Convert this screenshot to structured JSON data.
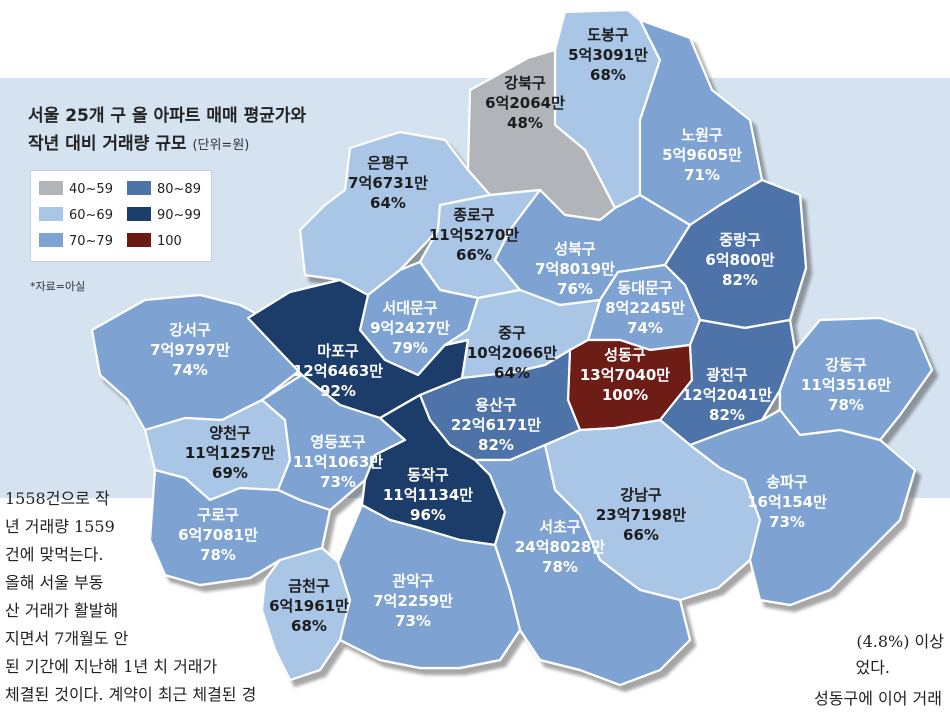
{
  "title": {
    "line1": "서울 25개 구 올 아파트 매매 평균가와",
    "line2": "작년 대비 거래량 규모",
    "unit": "(단위=원)"
  },
  "legend": [
    {
      "label": "40~59",
      "color": "#b1b5b9"
    },
    {
      "label": "80~89",
      "color": "#4d73a8"
    },
    {
      "label": "60~69",
      "color": "#a9c6e6"
    },
    {
      "label": "90~99",
      "color": "#1c3e6a"
    },
    {
      "label": "70~79",
      "color": "#7ea3d2"
    },
    {
      "label": "100",
      "color": "#6e1a14"
    }
  ],
  "source": "*자료=아실",
  "districts": [
    {
      "id": "dobong",
      "name": "도봉구",
      "price": "5억3091만",
      "pct": "68%",
      "range": "60~69"
    },
    {
      "id": "gangbuk",
      "name": "강북구",
      "price": "6억2064만",
      "pct": "48%",
      "range": "40~59"
    },
    {
      "id": "nowon",
      "name": "노원구",
      "price": "5억9605만",
      "pct": "71%",
      "range": "70~79"
    },
    {
      "id": "eunpyeong",
      "name": "은평구",
      "price": "7억6731만",
      "pct": "64%",
      "range": "60~69"
    },
    {
      "id": "jongno",
      "name": "종로구",
      "price": "11억5270만",
      "pct": "66%",
      "range": "60~69"
    },
    {
      "id": "seongbuk",
      "name": "성북구",
      "price": "7억8019만",
      "pct": "76%",
      "range": "70~79"
    },
    {
      "id": "jungnang",
      "name": "중랑구",
      "price": "6억800만",
      "pct": "82%",
      "range": "80~89"
    },
    {
      "id": "dongdaemun",
      "name": "동대문구",
      "price": "8억2245만",
      "pct": "74%",
      "range": "70~79"
    },
    {
      "id": "seodaemun",
      "name": "서대문구",
      "price": "9억2427만",
      "pct": "79%",
      "range": "70~79"
    },
    {
      "id": "gangseo",
      "name": "강서구",
      "price": "7억9797만",
      "pct": "74%",
      "range": "70~79"
    },
    {
      "id": "mapo",
      "name": "마포구",
      "price": "12억6463만",
      "pct": "92%",
      "range": "90~99"
    },
    {
      "id": "jung",
      "name": "중구",
      "price": "10억2066만",
      "pct": "64%",
      "range": "60~69"
    },
    {
      "id": "seongdong",
      "name": "성동구",
      "price": "13억7040만",
      "pct": "100%",
      "range": "100"
    },
    {
      "id": "gwangjin",
      "name": "광진구",
      "price": "12억2041만",
      "pct": "82%",
      "range": "80~89"
    },
    {
      "id": "gangdong",
      "name": "강동구",
      "price": "11억3516만",
      "pct": "78%",
      "range": "70~79"
    },
    {
      "id": "yongsan",
      "name": "용산구",
      "price": "22억6171만",
      "pct": "82%",
      "range": "80~89"
    },
    {
      "id": "yangcheon",
      "name": "양천구",
      "price": "11억1257만",
      "pct": "69%",
      "range": "60~69"
    },
    {
      "id": "yeongdeungpo",
      "name": "영등포구",
      "price": "11억1063만",
      "pct": "73%",
      "range": "70~79"
    },
    {
      "id": "dongjak",
      "name": "동작구",
      "price": "11억1134만",
      "pct": "96%",
      "range": "90~99"
    },
    {
      "id": "guro",
      "name": "구로구",
      "price": "6억7081만",
      "pct": "78%",
      "range": "70~79"
    },
    {
      "id": "gangnam",
      "name": "강남구",
      "price": "23억7198만",
      "pct": "66%",
      "range": "60~69"
    },
    {
      "id": "songpa",
      "name": "송파구",
      "price": "16억154만",
      "pct": "73%",
      "range": "70~79"
    },
    {
      "id": "seocho",
      "name": "서초구",
      "price": "24억8028만",
      "pct": "78%",
      "range": "70~79"
    },
    {
      "id": "geumcheon",
      "name": "금천구",
      "price": "6억1961만",
      "pct": "68%",
      "range": "60~69"
    },
    {
      "id": "gwanak",
      "name": "관악구",
      "price": "7억2259만",
      "pct": "73%",
      "range": "70~79"
    }
  ],
  "article": {
    "left_lines": [
      "1558건으로  작",
      "년 거래량 1559",
      "건에 맞먹는다.",
      "올해 서울 부동",
      "산 거래가 활발해",
      "지면서  7개월도  안",
      "된 기간에 지난해 1년 치 거래가",
      "체결된 것이다. 계약이 최근 체결된 경"
    ],
    "right_line1": "(4.8%) 이상",
    "right_line2": "었다.",
    "right_line3": "성동구에  이어  거래"
  }
}
